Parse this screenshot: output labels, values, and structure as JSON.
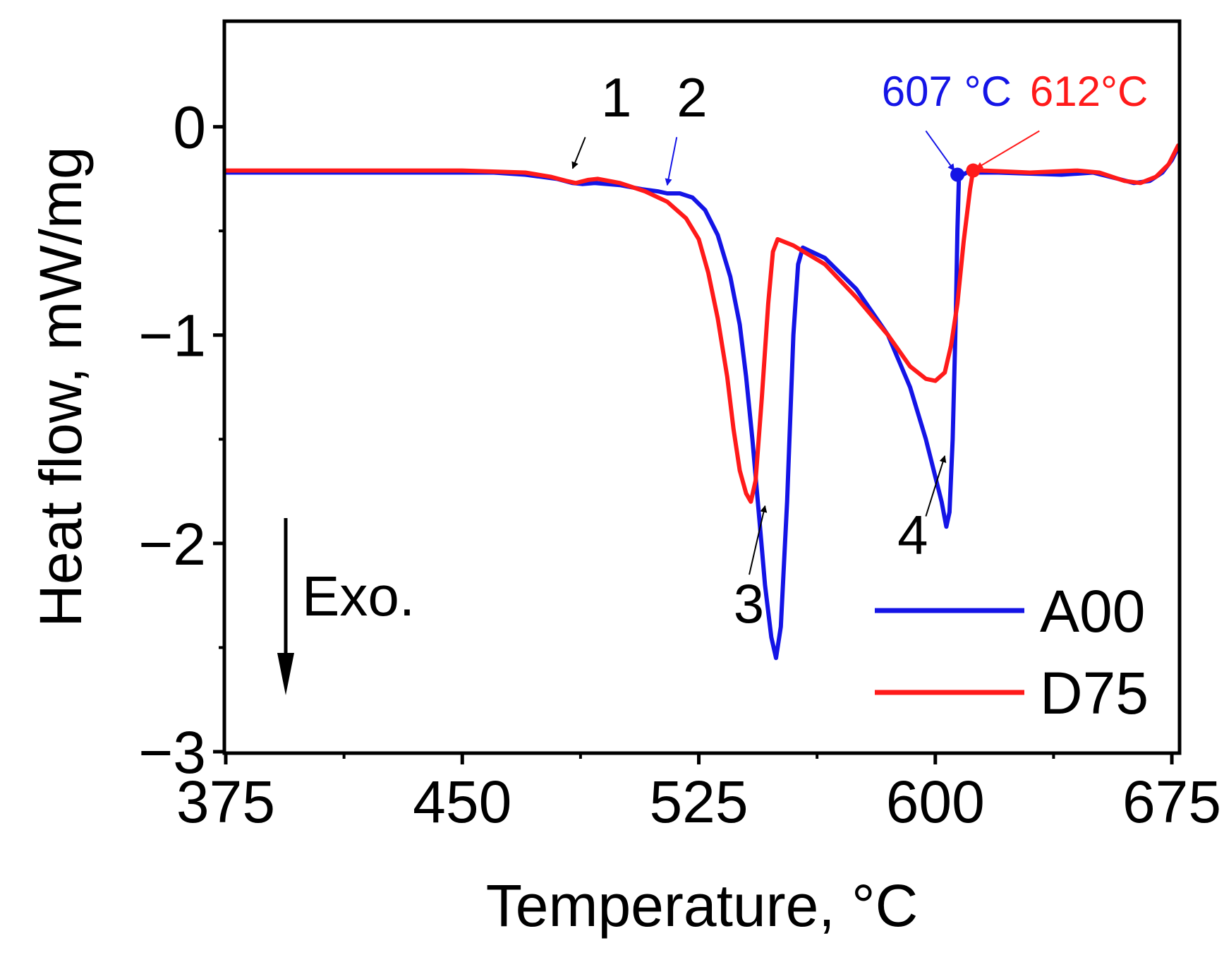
{
  "chart_data": {
    "type": "line",
    "title": "",
    "xlabel": "Temperature, °C",
    "ylabel": "Heat flow, mW/mg",
    "xlim": [
      375,
      677
    ],
    "ylim": [
      -3,
      0.5
    ],
    "xticks": [
      375,
      450,
      525,
      600,
      675
    ],
    "xtick_labels": [
      "375",
      "450",
      "525",
      "600",
      "675"
    ],
    "xminor": [
      412.5,
      487.5,
      562.5,
      637.5
    ],
    "yticks": [
      0,
      -1,
      -2,
      -3
    ],
    "ytick_labels": [
      "0",
      "−1",
      "−2",
      "−3"
    ],
    "yminor": [
      -0.5,
      -1.5,
      -2.5
    ],
    "grid": false,
    "legend_position": "bottom-right",
    "series": [
      {
        "name": "A00",
        "color": "#1414e6",
        "points": [
          [
            375,
            -0.22
          ],
          [
            400,
            -0.22
          ],
          [
            440,
            -0.22
          ],
          [
            460,
            -0.22
          ],
          [
            470,
            -0.23
          ],
          [
            480,
            -0.25
          ],
          [
            485,
            -0.27
          ],
          [
            488,
            -0.275
          ],
          [
            492,
            -0.27
          ],
          [
            500,
            -0.28
          ],
          [
            507,
            -0.3
          ],
          [
            512,
            -0.31
          ],
          [
            515,
            -0.32
          ],
          [
            519,
            -0.32
          ],
          [
            523,
            -0.34
          ],
          [
            527,
            -0.4
          ],
          [
            531,
            -0.52
          ],
          [
            535,
            -0.72
          ],
          [
            538,
            -0.95
          ],
          [
            540,
            -1.2
          ],
          [
            542,
            -1.5
          ],
          [
            544,
            -1.85
          ],
          [
            546,
            -2.2
          ],
          [
            548,
            -2.45
          ],
          [
            549.5,
            -2.55
          ],
          [
            551,
            -2.4
          ],
          [
            553,
            -1.8
          ],
          [
            555,
            -1.0
          ],
          [
            556.5,
            -0.66
          ],
          [
            558,
            -0.58
          ],
          [
            565,
            -0.63
          ],
          [
            575,
            -0.78
          ],
          [
            585,
            -1.0
          ],
          [
            592,
            -1.25
          ],
          [
            597,
            -1.5
          ],
          [
            600,
            -1.68
          ],
          [
            602,
            -1.8
          ],
          [
            603.5,
            -1.92
          ],
          [
            604.5,
            -1.85
          ],
          [
            605.5,
            -1.5
          ],
          [
            606.5,
            -0.9
          ],
          [
            607,
            -0.5
          ],
          [
            607.5,
            -0.24
          ],
          [
            610,
            -0.22
          ],
          [
            620,
            -0.22
          ],
          [
            640,
            -0.23
          ],
          [
            650,
            -0.22
          ],
          [
            658,
            -0.25
          ],
          [
            663,
            -0.27
          ],
          [
            668,
            -0.26
          ],
          [
            672,
            -0.22
          ],
          [
            675,
            -0.16
          ],
          [
            677,
            -0.1
          ]
        ]
      },
      {
        "name": "D75",
        "color": "#ff1a1a",
        "points": [
          [
            375,
            -0.21
          ],
          [
            400,
            -0.21
          ],
          [
            450,
            -0.21
          ],
          [
            470,
            -0.22
          ],
          [
            478,
            -0.24
          ],
          [
            483,
            -0.26
          ],
          [
            486,
            -0.27
          ],
          [
            490,
            -0.255
          ],
          [
            493,
            -0.25
          ],
          [
            500,
            -0.27
          ],
          [
            508,
            -0.31
          ],
          [
            515,
            -0.36
          ],
          [
            521,
            -0.44
          ],
          [
            525,
            -0.54
          ],
          [
            528,
            -0.7
          ],
          [
            531,
            -0.92
          ],
          [
            534,
            -1.2
          ],
          [
            536,
            -1.45
          ],
          [
            538,
            -1.65
          ],
          [
            540,
            -1.76
          ],
          [
            541.5,
            -1.8
          ],
          [
            543,
            -1.7
          ],
          [
            545,
            -1.3
          ],
          [
            547,
            -0.85
          ],
          [
            548.5,
            -0.6
          ],
          [
            550,
            -0.54
          ],
          [
            555,
            -0.57
          ],
          [
            565,
            -0.66
          ],
          [
            575,
            -0.82
          ],
          [
            585,
            -1.0
          ],
          [
            592,
            -1.15
          ],
          [
            597,
            -1.21
          ],
          [
            600,
            -1.22
          ],
          [
            603,
            -1.18
          ],
          [
            605,
            -1.05
          ],
          [
            607,
            -0.85
          ],
          [
            609,
            -0.55
          ],
          [
            611,
            -0.3
          ],
          [
            612,
            -0.21
          ],
          [
            615,
            -0.21
          ],
          [
            630,
            -0.22
          ],
          [
            645,
            -0.21
          ],
          [
            652,
            -0.22
          ],
          [
            660,
            -0.26
          ],
          [
            665,
            -0.27
          ],
          [
            670,
            -0.24
          ],
          [
            674,
            -0.18
          ],
          [
            677,
            -0.09
          ]
        ]
      }
    ],
    "markers": [
      {
        "series": "A00",
        "x": 607,
        "y": -0.23
      },
      {
        "series": "D75",
        "x": 612,
        "y": -0.21
      }
    ],
    "annotations": [
      {
        "label": "1",
        "color": "#000000",
        "text_x": 494,
        "text_y": 0.05,
        "arrow_from": [
          489,
          -0.05
        ],
        "arrow_to": [
          485,
          -0.2
        ]
      },
      {
        "label": "2",
        "color": "#1414e6",
        "text_x": 518,
        "text_y": 0.05,
        "arrow_from": [
          518,
          -0.05
        ],
        "arrow_to": [
          515,
          -0.28
        ]
      },
      {
        "label": "3",
        "color": "#000000",
        "text_x": 536,
        "text_y": -2.38,
        "arrow_from": [
          541,
          -2.15
        ],
        "arrow_to": [
          546,
          -1.82
        ]
      },
      {
        "label": "4",
        "color": "#000000",
        "text_x": 588,
        "text_y": -2.05,
        "arrow_from": [
          597,
          -1.87
        ],
        "arrow_to": [
          603,
          -1.58
        ]
      },
      {
        "label": "607 °C",
        "color": "#1414e6",
        "text_x": 583,
        "text_y": 0.1,
        "arrow_from": [
          597,
          -0.02
        ],
        "arrow_to": [
          606,
          -0.21
        ]
      },
      {
        "label": "612°C",
        "color": "#ff1a1a",
        "text_x": 630,
        "text_y": 0.1,
        "arrow_from": [
          633,
          -0.02
        ],
        "arrow_to": [
          613,
          -0.2
        ]
      }
    ],
    "side_label": "Exo."
  }
}
